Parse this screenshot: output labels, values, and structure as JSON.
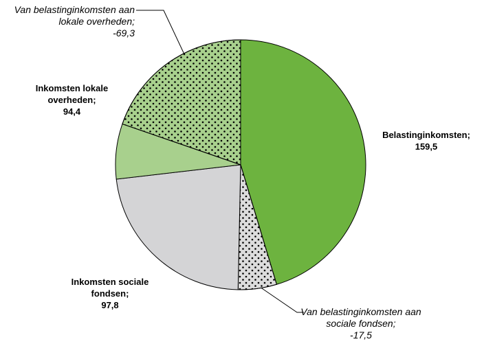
{
  "chart_data": {
    "type": "pie",
    "categories": [
      "Belastinginkomsten;",
      "Van belastinginkomsten aan sociale fondsen;",
      "Inkomsten sociale fondsen;",
      "Inkomsten lokale overheden;",
      "Van belastinginkomsten aan lokale overheden;"
    ],
    "values": [
      159.5,
      -17.5,
      97.8,
      94.4,
      -69.3
    ],
    "value_labels": [
      "159,5",
      "-17,5",
      "97,8",
      "94,4",
      "-69,3"
    ],
    "colors": [
      "#6db33f",
      "#dcdcdc",
      "#d4d4d6",
      "#a8d08d",
      "#a8d08d"
    ]
  }
}
